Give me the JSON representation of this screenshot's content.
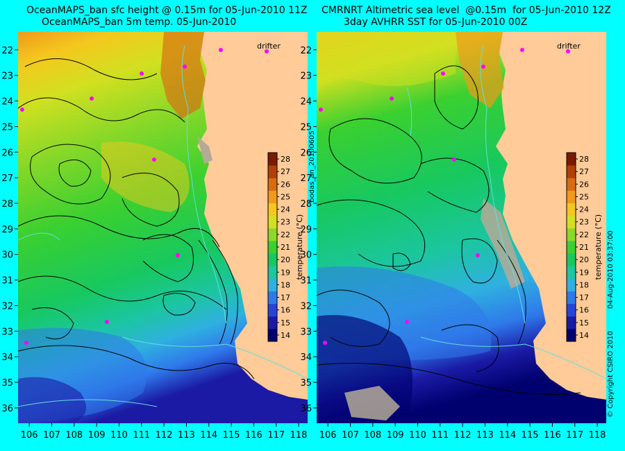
{
  "titles": {
    "left_line1": "OceanMAPS_ban sfc height @ 0.15m for 05-Jun-2010 11Z",
    "left_line2": "OceanMAPS_ban 5m temp. 05-Jun-2010",
    "right_line1": "CMRNRT Altimetric sea level  @0.15m  for 05-Jun-2010 12Z",
    "right_line2": "3day AVHRR SST for 05-Jun-2010 00Z"
  },
  "axes": {
    "lat_labels": [
      "22",
      "23",
      "24",
      "25",
      "26",
      "27",
      "28",
      "29",
      "30",
      "31",
      "32",
      "33",
      "34",
      "35",
      "36"
    ],
    "lon_labels": [
      "106",
      "107",
      "108",
      "109",
      "110",
      "111",
      "112",
      "113",
      "114",
      "115",
      "116",
      "117",
      "118"
    ],
    "lat_range": [
      21.3,
      36.6
    ],
    "lon_range": [
      105.5,
      118.4
    ]
  },
  "colorbar": {
    "label": "temperature (°C)",
    "ticks": [
      "28",
      "27",
      "26",
      "25",
      "24",
      "23",
      "22",
      "21",
      "20",
      "19",
      "18",
      "17",
      "16",
      "15",
      "14"
    ],
    "min": 13.5,
    "max": 28.5,
    "colors": [
      "#00006e",
      "#1a1aa5",
      "#2844d8",
      "#2f79ea",
      "#2fb0e0",
      "#1bc6a0",
      "#17c860",
      "#3ad030",
      "#8ad828",
      "#d2e020",
      "#f4c81e",
      "#f09a1a",
      "#d86a10",
      "#b04008",
      "#7a1a00"
    ]
  },
  "labels": {
    "drifter_left": "drifter",
    "drifter_right": "drifter",
    "run_id": "bodas_an_20100605",
    "copyright": "© Copyright CSIRO 2010",
    "timestamp": "04-Aug-2010 03:37:00"
  },
  "colors": {
    "background": "#00ffff",
    "land": "#ffcc99",
    "drifter_marker": "#ff00ff",
    "contour": "#000000",
    "bathymetry": "#66dddd"
  }
}
